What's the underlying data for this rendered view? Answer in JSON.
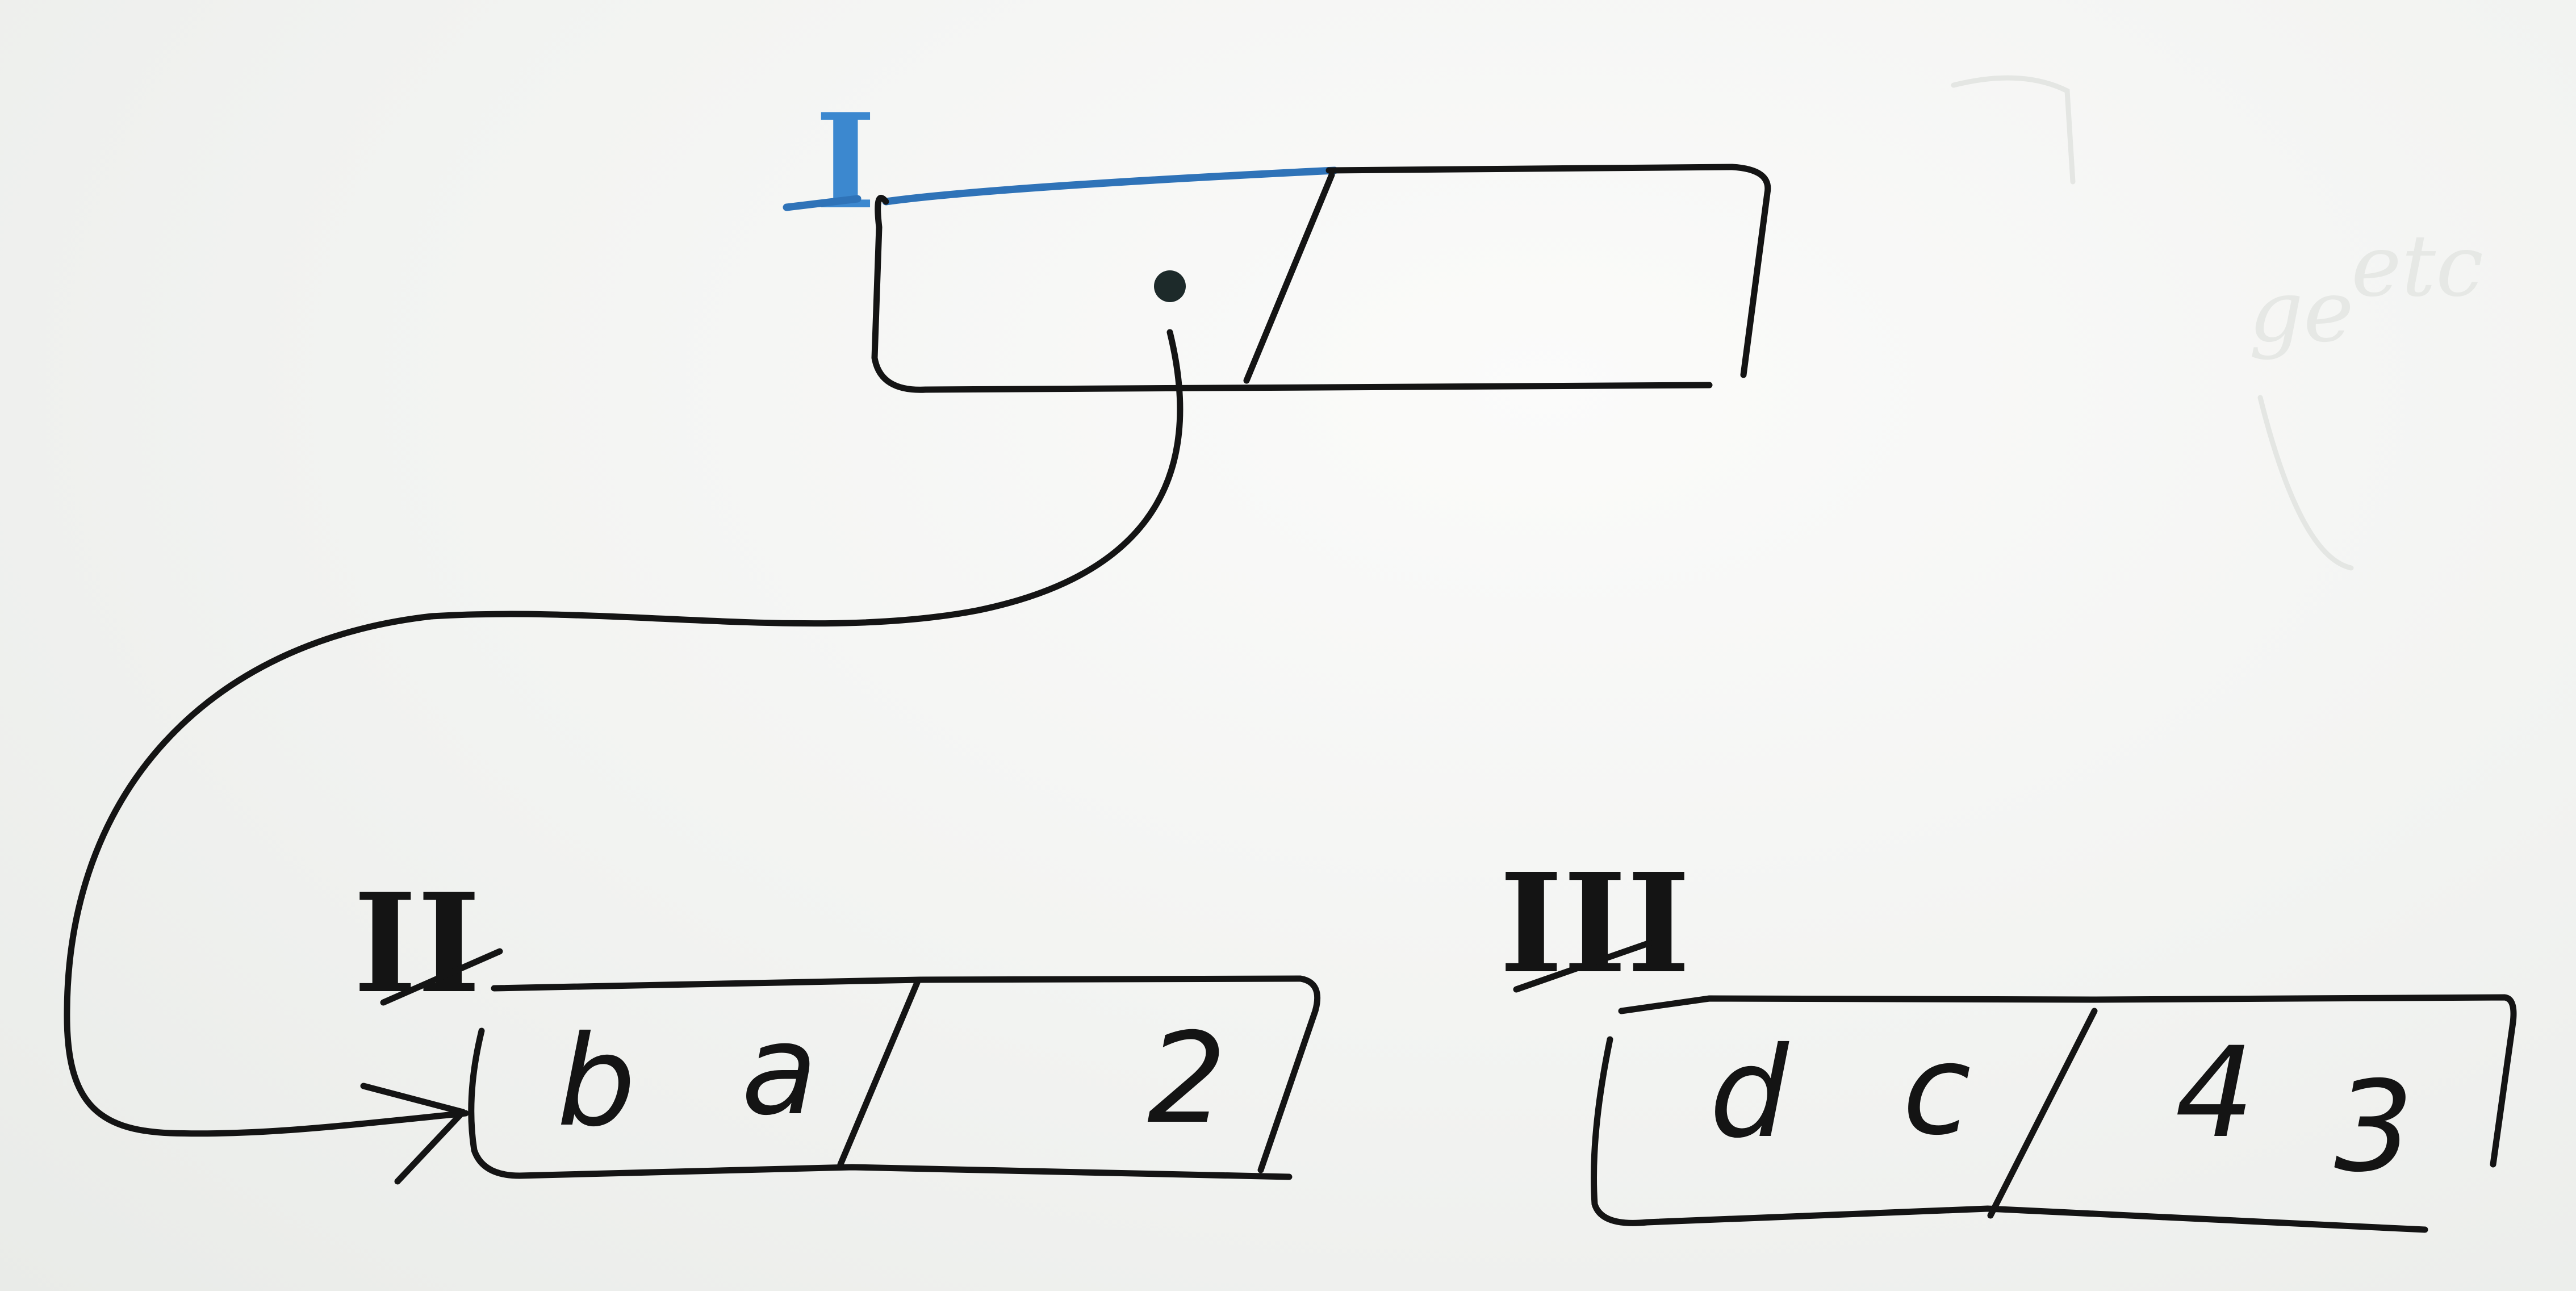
{
  "nodes": [
    {
      "label": "I",
      "color": "#3c88cf",
      "left_cell": [],
      "right_cell": [],
      "pointer": "dot"
    },
    {
      "label": "II",
      "color": "#141414",
      "left_cell": [
        "b",
        "a"
      ],
      "right_cell": [
        "2"
      ]
    },
    {
      "label": "III",
      "color": "#141414",
      "left_cell": [
        "d",
        "c"
      ],
      "right_cell": [
        "4",
        "3"
      ]
    }
  ]
}
